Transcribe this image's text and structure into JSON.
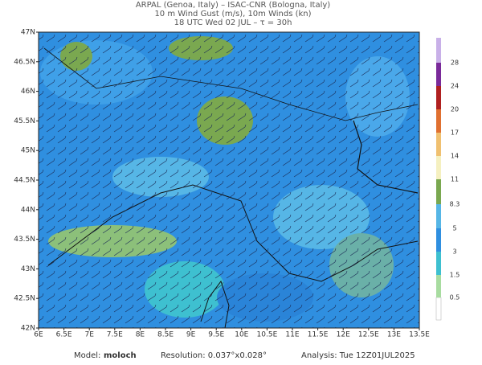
{
  "header": {
    "line1": "ARPAL (Genoa, Italy)  –  ISAC-CNR (Bologna, Italy)",
    "line2": "10 m Wind Gust (m/s), 10m Winds (kn)",
    "line3": "18 UTC Wed 02 JUL  –  τ = 30h"
  },
  "map": {
    "lon_labels": [
      "6E",
      "6.5E",
      "7E",
      "7.5E",
      "8E",
      "8.5E",
      "9E",
      "9.5E",
      "10E",
      "10.5E",
      "11E",
      "11.5E",
      "12E",
      "12.5E",
      "13E",
      "13.5E"
    ],
    "lat_labels": [
      "47N",
      "46.5N",
      "46N",
      "45.5N",
      "45N",
      "44.5N",
      "44N",
      "43.5N",
      "43N",
      "42.5N",
      "42N"
    ]
  },
  "colorbar": {
    "labels": [
      "28",
      "24",
      "20",
      "17",
      "14",
      "11",
      "8.3",
      "5",
      "3",
      "1.5",
      "0.5"
    ]
  },
  "footer": {
    "model_label": "Model:",
    "model": "moloch",
    "resolution": "Resolution: 0.037°x0.028°",
    "analysis": "Analysis: Tue 12Z01JUL2025"
  }
}
